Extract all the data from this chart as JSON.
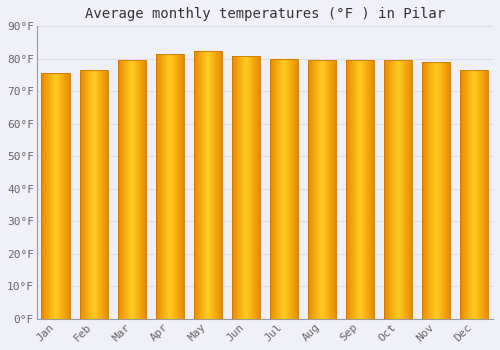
{
  "months": [
    "Jan",
    "Feb",
    "Mar",
    "Apr",
    "May",
    "Jun",
    "Jul",
    "Aug",
    "Sep",
    "Oct",
    "Nov",
    "Dec"
  ],
  "values": [
    75.5,
    76.5,
    79.5,
    81.5,
    82.5,
    81.0,
    80.0,
    79.5,
    79.5,
    79.5,
    79.0,
    76.5
  ],
  "title": "Average monthly temperatures (°F ) in Pilar",
  "ylim": [
    0,
    90
  ],
  "yticks": [
    0,
    10,
    20,
    30,
    40,
    50,
    60,
    70,
    80,
    90
  ],
  "ytick_labels": [
    "0°F",
    "10°F",
    "20°F",
    "30°F",
    "40°F",
    "50°F",
    "60°F",
    "70°F",
    "80°F",
    "90°F"
  ],
  "bar_color_center": "#FFD966",
  "bar_color_edge": "#E8960A",
  "background_color": "#F0F0F8",
  "plot_bg_color": "#F0F0F8",
  "grid_color": "#DDDDEE",
  "title_fontsize": 10,
  "tick_fontsize": 8,
  "bar_width": 0.75,
  "left_spine_color": "#999999"
}
